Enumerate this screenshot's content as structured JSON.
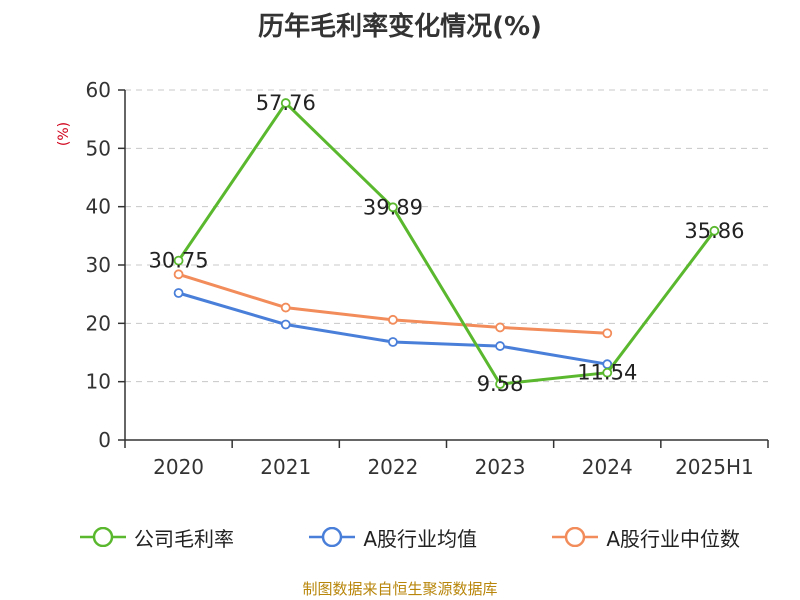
{
  "title": "历年毛利率变化情况(%)",
  "source": "制图数据来自恒生聚源数据库",
  "colors": {
    "source_text": "#b8860b",
    "ylabel": "#d0021b"
  },
  "chart_data": {
    "type": "line",
    "title": "历年毛利率变化情况(%)",
    "ylabel": "(%)",
    "xlabel": "",
    "categories": [
      "2020",
      "2021",
      "2022",
      "2023",
      "2024",
      "2025H1"
    ],
    "ylim": [
      0,
      60
    ],
    "yticks": [
      "0",
      "10",
      "20",
      "30",
      "40",
      "50",
      "60"
    ],
    "grid": true,
    "legend_position": "bottom",
    "series": [
      {
        "name": "公司毛利率",
        "color": "#5ab82e",
        "values": [
          30.75,
          57.76,
          39.89,
          9.58,
          11.54,
          35.86
        ],
        "labels": [
          "30.75",
          "57.76",
          "39.89",
          "9.58",
          "11.54",
          "35.86"
        ]
      },
      {
        "name": "A股行业均值",
        "color": "#4a7fd9",
        "values": [
          25.2,
          19.8,
          16.8,
          16.1,
          13.0,
          null
        ]
      },
      {
        "name": "A股行业中位数",
        "color": "#f28c5a",
        "values": [
          28.4,
          22.7,
          20.6,
          19.3,
          18.3,
          null
        ]
      }
    ]
  }
}
